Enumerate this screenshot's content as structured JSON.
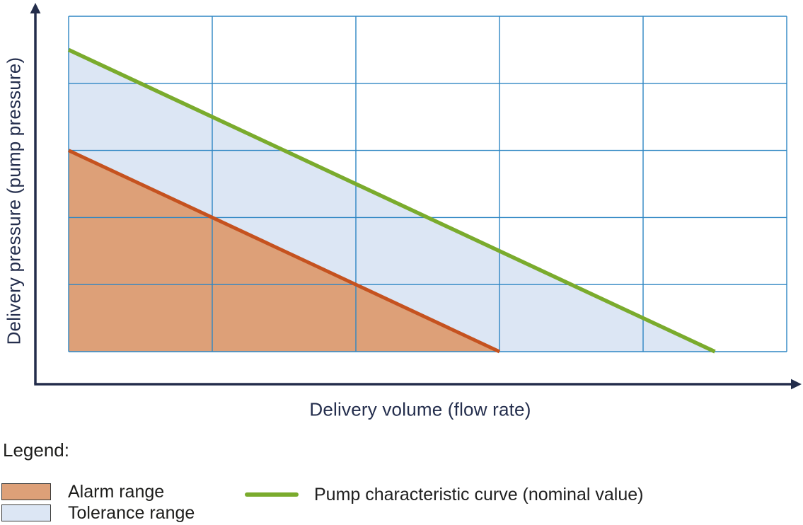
{
  "chart_data": {
    "type": "area",
    "xlabel": "Delivery volume (flow rate)",
    "ylabel": "Delivery pressure (pump pressure)",
    "x_range": [
      0,
      5
    ],
    "y_range": [
      0,
      5
    ],
    "tick_labels": "none",
    "grid": {
      "columns": 5,
      "rows": 5,
      "color": "#2E86C3",
      "visible": true
    },
    "axes": {
      "color": "#232D4B",
      "style": "arrow"
    },
    "series": [
      {
        "id": "tolerance-area",
        "name": "Tolerance range",
        "kind": "area",
        "color": "#DCE6F4",
        "points": [
          [
            0,
            4.5
          ],
          [
            4.5,
            0
          ],
          [
            0,
            0
          ]
        ]
      },
      {
        "id": "alarm-area",
        "name": "Alarm range",
        "kind": "area",
        "color": "#DDA078",
        "points": [
          [
            0,
            3
          ],
          [
            3,
            0
          ],
          [
            0,
            0
          ]
        ]
      },
      {
        "id": "alarm-limit-curve",
        "name": "Alarm range limit",
        "kind": "line",
        "color": "#C5521F",
        "width": 5,
        "points": [
          [
            0,
            3
          ],
          [
            3,
            0
          ]
        ]
      },
      {
        "id": "pump-characteristic-curve",
        "name": "Pump characteristic curve (nominal value)",
        "kind": "line",
        "color": "#7AAB2D",
        "width": 5.5,
        "points": [
          [
            0,
            4.5
          ],
          [
            4.5,
            0
          ]
        ]
      }
    ],
    "legend_position": "below"
  },
  "legend": {
    "title": "Legend:",
    "items": [
      {
        "label": "Alarm range",
        "swatch_type": "area",
        "swatch_color": "#DDA078"
      },
      {
        "label": "Tolerance range",
        "swatch_type": "area",
        "swatch_color": "#DCE6F4"
      },
      {
        "label": "Pump characteristic curve (nominal value)",
        "swatch_type": "line",
        "swatch_color": "#7AAB2D"
      }
    ]
  },
  "colors": {
    "axis_navy": "#232D4B",
    "label_navy": "#242E4D",
    "grid_blue": "#2E86C3",
    "alarm_fill": "#DDA078",
    "alarm_line": "#C5521F",
    "tolerance_fill": "#DCE6F4",
    "pump_curve_green": "#7AAB2D",
    "legend_text": "#1D1D1B",
    "swatch_border": "#3B3B3A"
  }
}
